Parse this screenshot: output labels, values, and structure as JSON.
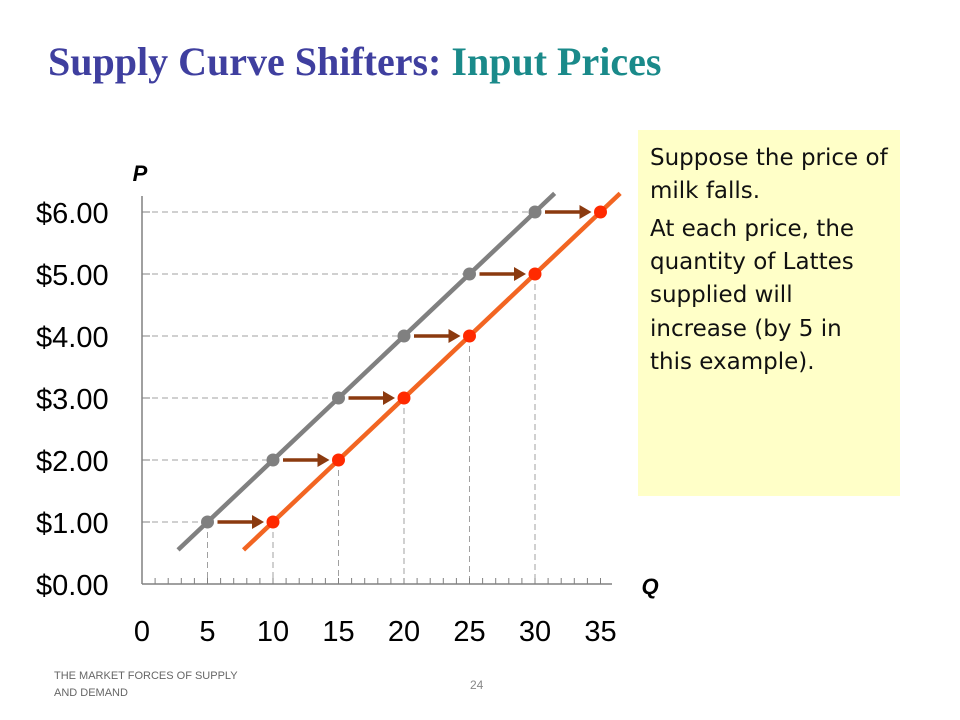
{
  "title": {
    "part1": "Supply Curve Shifters:",
    "part2": "Input Prices"
  },
  "note": {
    "paragraph1": "Suppose the price of milk falls.",
    "paragraph2": "At each price, the quantity of Lattes supplied will increase (by 5 in this example)."
  },
  "footer": {
    "left": "THE MARKET FORCES OF SUPPLY AND DEMAND",
    "page": "24"
  },
  "chart_data": {
    "type": "line",
    "title": "",
    "xlabel": "Q",
    "ylabel": "P",
    "xlim": [
      0,
      35
    ],
    "ylim": [
      0,
      6
    ],
    "x_ticks": [
      "0",
      "5",
      "10",
      "15",
      "20",
      "25",
      "30",
      "35"
    ],
    "y_ticks": [
      "$0.00",
      "$1.00",
      "$2.00",
      "$3.00",
      "$4.00",
      "$5.00",
      "$6.00"
    ],
    "grid": "dashed reference lines",
    "series": [
      {
        "color": "#808080",
        "points": [
          [
            5,
            1
          ],
          [
            10,
            2
          ],
          [
            15,
            3
          ],
          [
            20,
            4
          ],
          [
            25,
            5
          ],
          [
            30,
            6
          ]
        ]
      },
      {
        "color": "#f26522",
        "marker_color": "#ff2a00",
        "points": [
          [
            10,
            1
          ],
          [
            15,
            2
          ],
          [
            20,
            3
          ],
          [
            25,
            4
          ],
          [
            30,
            5
          ],
          [
            35,
            6
          ]
        ]
      }
    ],
    "arrows": {
      "color": "#8b3a0f",
      "shift": 5
    }
  }
}
